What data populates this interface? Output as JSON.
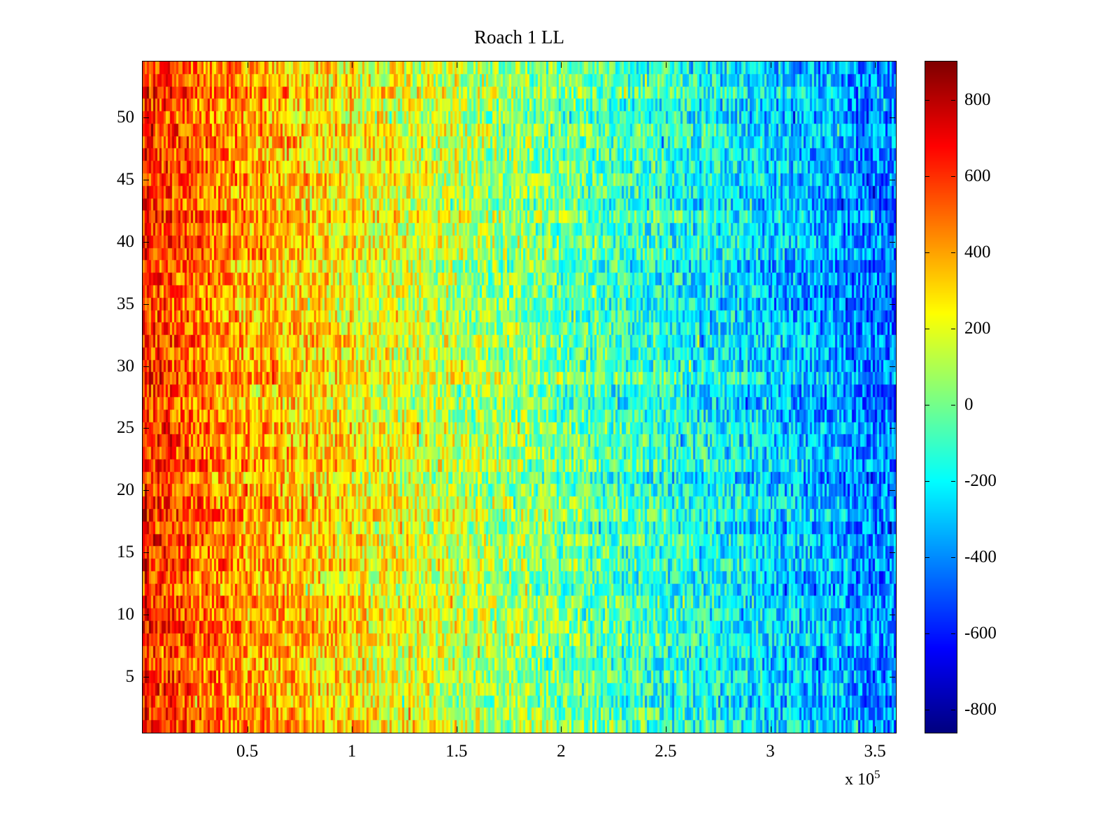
{
  "figure": {
    "background": "#ffffff",
    "axis_color": "#000000"
  },
  "chart_data": {
    "type": "heatmap",
    "title": "Roach 1 LL",
    "colormap": "jet",
    "legend_position": "colorbar-right",
    "grid": {
      "rows": 54,
      "cols": 360
    },
    "x_axis": {
      "range": [
        0,
        360000
      ],
      "tick_values": [
        50000,
        100000,
        150000,
        200000,
        250000,
        300000,
        350000
      ],
      "tick_labels": [
        "0.5",
        "1",
        "1.5",
        "2",
        "2.5",
        "3",
        "3.5"
      ],
      "exponent_prefix": "x 10",
      "exponent": "5"
    },
    "y_axis": {
      "range": [
        0.5,
        54.5
      ],
      "tick_values": [
        5,
        10,
        15,
        20,
        25,
        30,
        35,
        40,
        45,
        50
      ],
      "tick_labels": [
        "5",
        "10",
        "15",
        "20",
        "25",
        "30",
        "35",
        "40",
        "45",
        "50"
      ]
    },
    "colorbar": {
      "limits": [
        -860,
        900
      ],
      "tick_values": [
        800,
        600,
        400,
        200,
        0,
        -200,
        -400,
        -600,
        -800
      ],
      "tick_labels": [
        "800",
        "600",
        "400",
        "200",
        "0",
        "-200",
        "-400",
        "-600",
        "-800"
      ]
    },
    "trend": {
      "description": "Values fall approximately linearly with x from hot (red, mean ~+530) at the left edge through yellow/green near x=1.7e5 to cold (blue, mean ~-440) at the right edge; uniform across rows with strong high-frequency speckle noise.",
      "left_mean": 530,
      "right_mean": -440,
      "left_boost": 90,
      "left_boost_width": 0.12,
      "noise_amplitude": 235,
      "row_offset_amplitude": 55,
      "col_offset_amplitude": 35,
      "spike_probability": 0.04,
      "spike_amplitude": 200,
      "seed": 20131
    }
  }
}
